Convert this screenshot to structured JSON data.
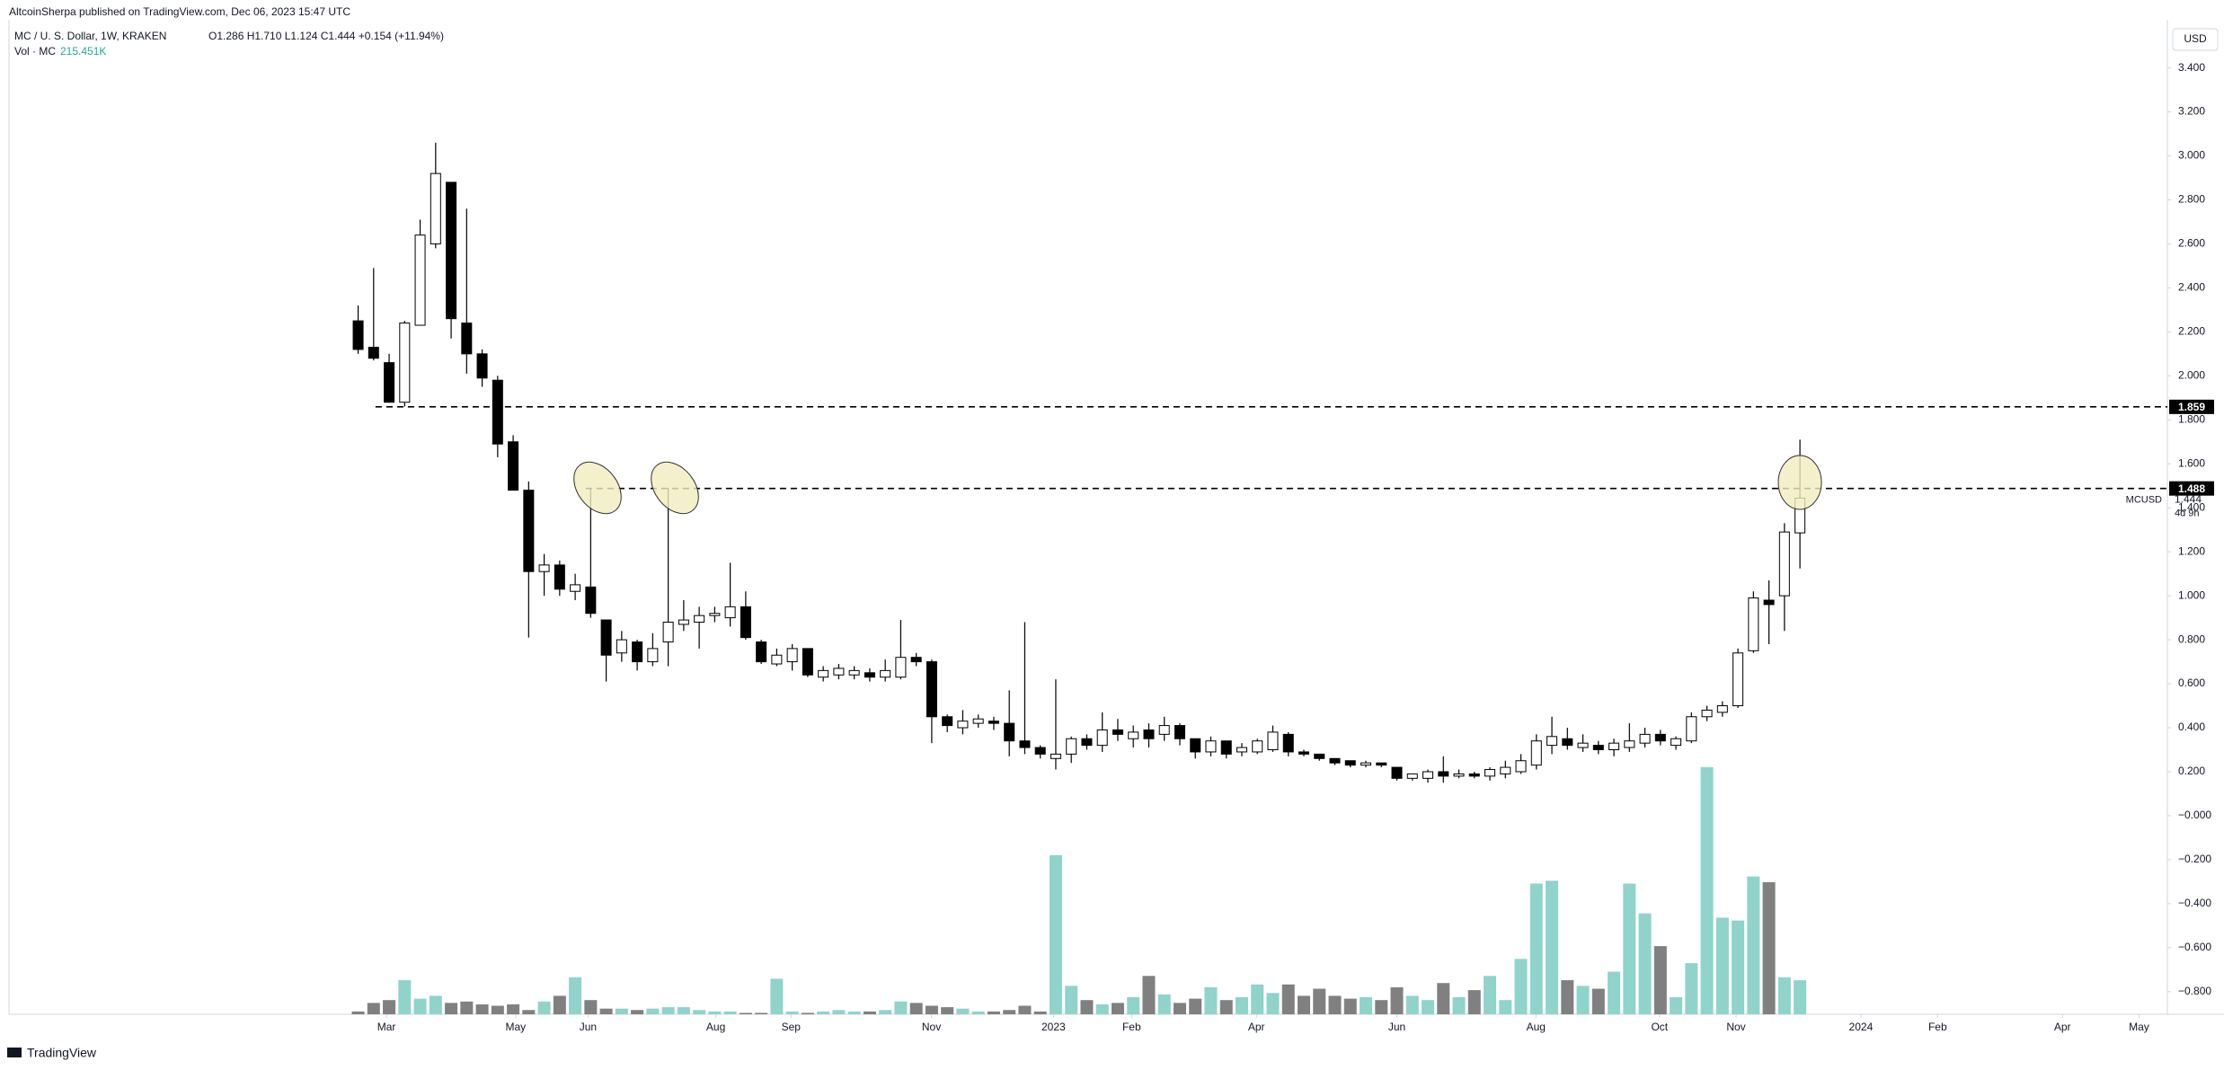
{
  "chart_data": {
    "type": "candlestick",
    "publisher": "AltcoinSherpa published on TradingView.com, Dec 06, 2023 15:47 UTC",
    "symbol": "MC / U. S. Dollar, 1W, KRAKEN",
    "legend": "O1.286 H1.710 L1.124 C1.444 +0.154 (+11.94%)",
    "volume_title": "Vol · MC",
    "volume_last_label": "215.451K",
    "currency": "USD",
    "symbol_tag": "MCUSD",
    "countdown": "4d 9h",
    "brand": "TradingView",
    "up_color": "#ffffff",
    "down_color": "#000000",
    "volume_up_color": "#8fd3cb",
    "volume_down_color": "#808080",
    "grid": false,
    "open": [
      2.25,
      2.13,
      2.06,
      1.88,
      2.23,
      2.6,
      2.88,
      2.24,
      2.1,
      1.98,
      1.7,
      1.48,
      1.11,
      1.14,
      1.02,
      1.04,
      0.89,
      0.74,
      0.79,
      0.7,
      0.79,
      0.87,
      0.88,
      0.91,
      0.9,
      0.95,
      0.79,
      0.69,
      0.7,
      0.76,
      0.63,
      0.64,
      0.64,
      0.65,
      0.63,
      0.63,
      0.72,
      0.7,
      0.45,
      0.4,
      0.42,
      0.43,
      0.42,
      0.34,
      0.31,
      0.26,
      0.28,
      0.35,
      0.32,
      0.39,
      0.35,
      0.39,
      0.37,
      0.41,
      0.35,
      0.29,
      0.34,
      0.29,
      0.29,
      0.3,
      0.37,
      0.29,
      0.28,
      0.26,
      0.25,
      0.23,
      0.24,
      0.22,
      0.17,
      0.17,
      0.2,
      0.18,
      0.19,
      0.18,
      0.19,
      0.2,
      0.23,
      0.32,
      0.35,
      0.31,
      0.32,
      0.3,
      0.31,
      0.33,
      0.37,
      0.32,
      0.34,
      0.45,
      0.47,
      0.5,
      0.75,
      0.98,
      1.0,
      1.286
    ],
    "high": [
      2.32,
      2.49,
      2.1,
      2.25,
      2.71,
      3.06,
      2.88,
      2.76,
      2.12,
      2.0,
      1.73,
      1.52,
      1.19,
      1.16,
      1.1,
      1.49,
      0.89,
      0.84,
      0.8,
      0.83,
      1.49,
      0.98,
      0.95,
      0.95,
      1.15,
      1.02,
      0.8,
      0.76,
      0.78,
      0.76,
      0.68,
      0.69,
      0.68,
      0.67,
      0.71,
      0.89,
      0.74,
      0.71,
      0.46,
      0.48,
      0.46,
      0.45,
      0.57,
      0.88,
      0.32,
      0.62,
      0.36,
      0.37,
      0.47,
      0.44,
      0.41,
      0.42,
      0.45,
      0.42,
      0.35,
      0.36,
      0.34,
      0.33,
      0.35,
      0.41,
      0.38,
      0.3,
      0.28,
      0.26,
      0.25,
      0.25,
      0.24,
      0.22,
      0.19,
      0.21,
      0.27,
      0.21,
      0.2,
      0.22,
      0.25,
      0.28,
      0.37,
      0.45,
      0.4,
      0.37,
      0.34,
      0.35,
      0.42,
      0.4,
      0.39,
      0.36,
      0.47,
      0.5,
      0.52,
      0.76,
      1.02,
      1.07,
      1.33,
      1.71
    ],
    "low": [
      2.1,
      2.07,
      1.88,
      1.86,
      2.23,
      2.58,
      2.17,
      2.01,
      1.95,
      1.63,
      1.48,
      0.81,
      1.0,
      1.0,
      0.98,
      0.9,
      0.61,
      0.7,
      0.66,
      0.68,
      0.68,
      0.84,
      0.76,
      0.88,
      0.86,
      0.8,
      0.69,
      0.68,
      0.66,
      0.63,
      0.61,
      0.62,
      0.62,
      0.61,
      0.61,
      0.62,
      0.68,
      0.33,
      0.38,
      0.37,
      0.4,
      0.39,
      0.27,
      0.28,
      0.26,
      0.21,
      0.24,
      0.3,
      0.29,
      0.34,
      0.31,
      0.31,
      0.34,
      0.32,
      0.26,
      0.27,
      0.26,
      0.27,
      0.28,
      0.29,
      0.27,
      0.27,
      0.25,
      0.23,
      0.22,
      0.22,
      0.22,
      0.16,
      0.16,
      0.15,
      0.15,
      0.17,
      0.17,
      0.16,
      0.17,
      0.19,
      0.21,
      0.28,
      0.3,
      0.29,
      0.28,
      0.27,
      0.29,
      0.31,
      0.32,
      0.3,
      0.33,
      0.43,
      0.45,
      0.49,
      0.74,
      0.78,
      0.84,
      1.124
    ],
    "close": [
      2.12,
      2.08,
      1.88,
      2.24,
      2.64,
      2.92,
      2.26,
      2.1,
      1.99,
      1.69,
      1.48,
      1.11,
      1.14,
      1.03,
      1.05,
      0.92,
      0.73,
      0.8,
      0.7,
      0.76,
      0.88,
      0.89,
      0.91,
      0.92,
      0.95,
      0.81,
      0.7,
      0.73,
      0.76,
      0.64,
      0.66,
      0.67,
      0.66,
      0.63,
      0.66,
      0.72,
      0.7,
      0.45,
      0.41,
      0.43,
      0.44,
      0.42,
      0.34,
      0.31,
      0.28,
      0.28,
      0.35,
      0.32,
      0.39,
      0.37,
      0.38,
      0.35,
      0.41,
      0.35,
      0.29,
      0.34,
      0.28,
      0.31,
      0.34,
      0.38,
      0.29,
      0.28,
      0.26,
      0.24,
      0.23,
      0.24,
      0.23,
      0.17,
      0.19,
      0.2,
      0.18,
      0.19,
      0.18,
      0.21,
      0.22,
      0.25,
      0.34,
      0.36,
      0.32,
      0.33,
      0.3,
      0.33,
      0.34,
      0.37,
      0.34,
      0.35,
      0.45,
      0.48,
      0.5,
      0.74,
      0.99,
      0.96,
      1.29,
      1.444
    ],
    "volume": [
      18,
      72,
      90,
      216,
      99,
      117,
      72,
      81,
      63,
      54,
      63,
      27,
      81,
      117,
      234,
      90,
      36,
      36,
      27,
      36,
      45,
      45,
      27,
      18,
      18,
      9,
      9,
      225,
      18,
      9,
      18,
      27,
      18,
      18,
      27,
      81,
      72,
      54,
      45,
      36,
      18,
      18,
      27,
      54,
      18,
      1008,
      180,
      90,
      63,
      72,
      108,
      243,
      126,
      72,
      99,
      171,
      90,
      108,
      189,
      135,
      189,
      117,
      162,
      117,
      99,
      108,
      90,
      171,
      117,
      90,
      198,
      108,
      153,
      243,
      90,
      351,
      828,
      846,
      216,
      180,
      162,
      270,
      828,
      639,
      432,
      108,
      324,
      1566,
      612,
      594,
      873,
      837,
      234,
      215.451
    ],
    "volume_ylim": [
      0,
      6300
    ],
    "xlim": [
      -22.52,
      116.7
    ],
    "xticks": [
      {
        "value": 1.83,
        "label": "Mar"
      },
      {
        "value": 10.16,
        "label": "May"
      },
      {
        "value": 14.83,
        "label": "Jun"
      },
      {
        "value": 23.07,
        "label": "Aug"
      },
      {
        "value": 27.92,
        "label": "Sep"
      },
      {
        "value": 36.98,
        "label": "Nov"
      },
      {
        "value": 44.85,
        "label": "2023"
      },
      {
        "value": 49.89,
        "label": "Feb"
      },
      {
        "value": 57.94,
        "label": "Apr"
      },
      {
        "value": 67.0,
        "label": "Jun"
      },
      {
        "value": 75.97,
        "label": "Aug"
      },
      {
        "value": 83.94,
        "label": "Oct"
      },
      {
        "value": 88.88,
        "label": "Nov"
      },
      {
        "value": 96.93,
        "label": "2024"
      },
      {
        "value": 101.88,
        "label": "Feb"
      },
      {
        "value": 109.93,
        "label": "Apr"
      },
      {
        "value": 114.87,
        "label": "May"
      }
    ],
    "ylim": [
      -0.903,
      3.619
    ],
    "yticks": [
      {
        "value": 3.4,
        "label": "3.400"
      },
      {
        "value": 3.2,
        "label": "3.200"
      },
      {
        "value": 3.0,
        "label": "3.000"
      },
      {
        "value": 2.8,
        "label": "2.800"
      },
      {
        "value": 2.6,
        "label": "2.600"
      },
      {
        "value": 2.4,
        "label": "2.400"
      },
      {
        "value": 2.2,
        "label": "2.200"
      },
      {
        "value": 2.0,
        "label": "2.000"
      },
      {
        "value": 1.8,
        "label": "1.800"
      },
      {
        "value": 1.6,
        "label": "1.600"
      },
      {
        "value": 1.4,
        "label": "1.400"
      },
      {
        "value": 1.2,
        "label": "1.200"
      },
      {
        "value": 1.0,
        "label": "1.000"
      },
      {
        "value": 0.8,
        "label": "0.800"
      },
      {
        "value": 0.6,
        "label": "0.600"
      },
      {
        "value": 0.4,
        "label": "0.400"
      },
      {
        "value": 0.2,
        "label": "0.200"
      },
      {
        "value": 0,
        "label": "−0.000"
      },
      {
        "value": -0.2,
        "label": "−0.200"
      },
      {
        "value": -0.4,
        "label": "−0.400"
      },
      {
        "value": -0.6,
        "label": "−0.600"
      },
      {
        "value": -0.8,
        "label": "−0.800"
      }
    ],
    "hlines": [
      1.859,
      1.488
    ]
  }
}
